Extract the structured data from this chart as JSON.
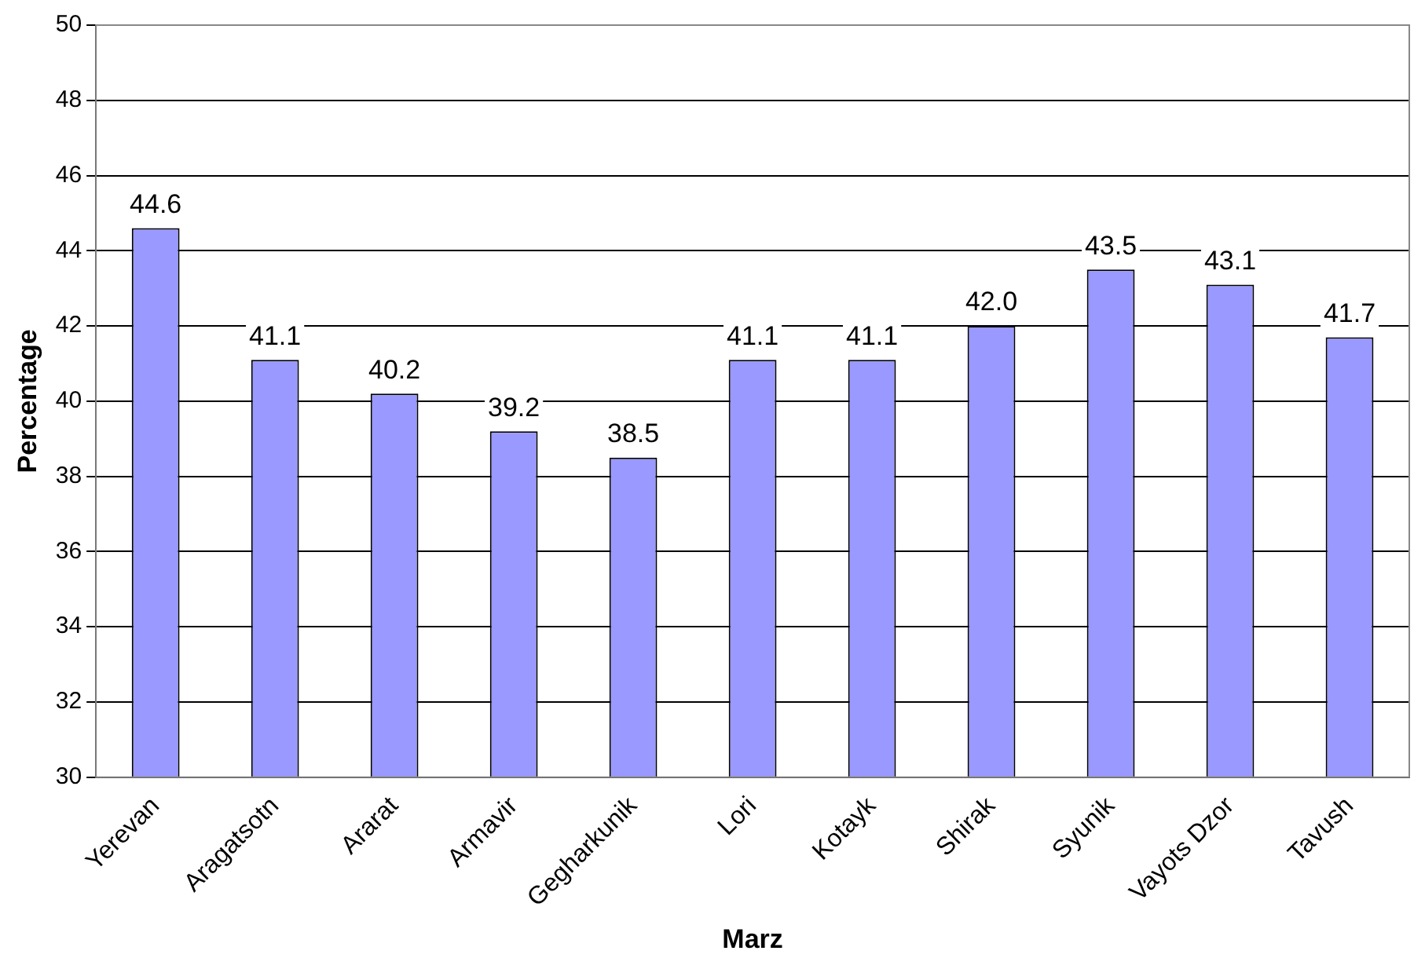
{
  "chart_data": {
    "type": "bar",
    "xlabel": "Marz",
    "ylabel": "Percentage",
    "categories": [
      "Yerevan",
      "Aragatsotn",
      "Ararat",
      "Armavir",
      "Gegharkunik",
      "Lori",
      "Kotayk",
      "Shirak",
      "Syunik",
      "Vayots Dzor",
      "Tavush"
    ],
    "values": [
      44.6,
      41.1,
      40.2,
      39.2,
      38.5,
      41.1,
      41.1,
      42.0,
      43.5,
      43.1,
      41.7
    ],
    "value_labels": [
      "44.6",
      "41.1",
      "40.2",
      "39.2",
      "38.5",
      "41.1",
      "41.1",
      "42.0",
      "43.5",
      "43.1",
      "41.7"
    ],
    "color": "#9999ff",
    "ylim": [
      30,
      50
    ],
    "yticks": [
      30,
      32,
      34,
      36,
      38,
      40,
      42,
      44,
      46,
      48,
      50
    ],
    "grid": "y",
    "legend": false
  }
}
